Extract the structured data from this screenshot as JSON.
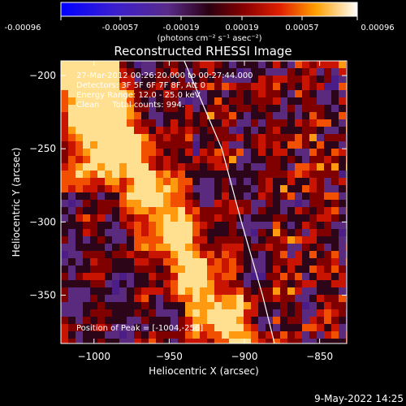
{
  "colorbar": {
    "ticks": [
      "-0.00096",
      "-0.00057",
      "-0.00019",
      "0.00019",
      "0.00057",
      "0.00096"
    ],
    "unit_label": "(photons cm⁻² s⁻¹ asec⁻²)",
    "range": [
      -0.00096,
      0.00096
    ]
  },
  "chart_data": {
    "type": "heatmap",
    "title": "Reconstructed RHESSI Image",
    "xlabel": "Heliocentric X (arcsec)",
    "ylabel": "Heliocentric Y (arcsec)",
    "xlim": [
      -1022,
      -832
    ],
    "ylim": [
      -383,
      -190
    ],
    "x_ticks": [
      -1000,
      -950,
      -900,
      -850
    ],
    "y_ticks": [
      -200,
      -250,
      -300,
      -350
    ],
    "annotations": [
      "27-Mar-2012 00:26:20.000 to 00:27:44.000",
      "Detectors: 3F 5F 6F 7F 8F, Att 0",
      "Energy Range: 12.0 - 25.0 keV",
      "Clean     Total counts: 994."
    ],
    "peak_label": "Position of Peak = [-1004,-256]",
    "peak_position": [
      -1004,
      -256
    ],
    "limb_curve": [
      [
        -940,
        -190
      ],
      [
        -915,
        -250
      ],
      [
        -902,
        -300
      ],
      [
        -888,
        -350
      ],
      [
        -880,
        -383
      ]
    ]
  },
  "footer": {
    "timestamp": "9-May-2022 14:25"
  },
  "colors": {
    "background": "#000000",
    "text": "#ffffff",
    "limb": "#ffffff"
  }
}
